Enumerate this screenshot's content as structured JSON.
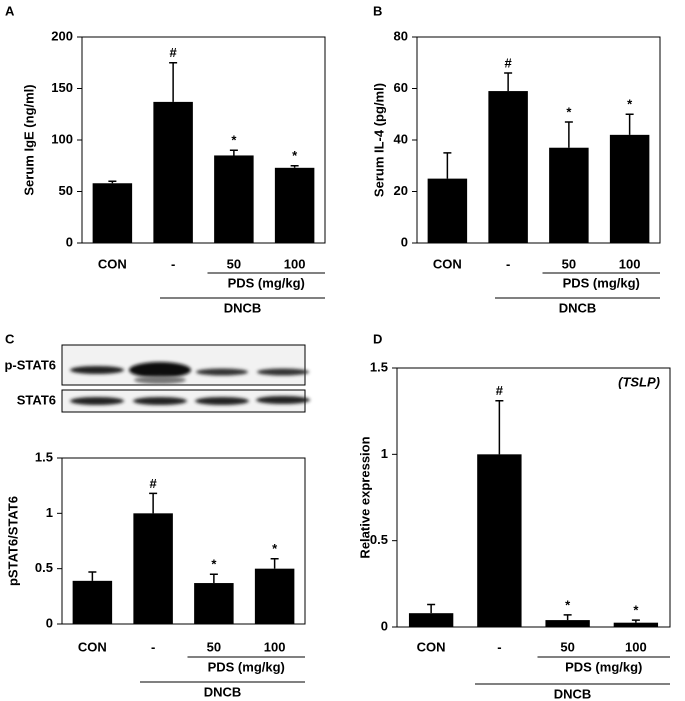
{
  "chart_data": [
    {
      "type": "bar",
      "panel": "A",
      "ylabel": "Serum IgE (ng/ml)",
      "categories": [
        "CON",
        "-",
        "50",
        "100"
      ],
      "values": [
        58,
        137,
        85,
        73
      ],
      "errors": [
        2,
        38,
        5,
        2
      ],
      "markers": [
        null,
        "#",
        "*",
        "*"
      ],
      "color": "#000000",
      "ylim": [
        0,
        200
      ],
      "yticks": [
        0,
        50,
        100,
        150,
        200
      ],
      "subgroup_label": "PDS (mg/kg)",
      "group_label": "DNCB"
    },
    {
      "type": "bar",
      "panel": "B",
      "ylabel": "Serum IL-4 (pg/ml)",
      "categories": [
        "CON",
        "-",
        "50",
        "100"
      ],
      "values": [
        25,
        59,
        37,
        42
      ],
      "errors": [
        10,
        7,
        10,
        8
      ],
      "markers": [
        null,
        "#",
        "*",
        "*"
      ],
      "color": "#000000",
      "ylim": [
        0,
        80
      ],
      "yticks": [
        0,
        20,
        40,
        60,
        80
      ],
      "subgroup_label": "PDS (mg/kg)",
      "group_label": "DNCB"
    },
    {
      "type": "bar",
      "panel": "C",
      "ylabel": "pSTAT6/STAT6",
      "blot_labels": [
        "p-STAT6",
        "STAT6"
      ],
      "categories": [
        "CON",
        "-",
        "50",
        "100"
      ],
      "values": [
        0.39,
        1.0,
        0.37,
        0.5
      ],
      "errors": [
        0.08,
        0.18,
        0.08,
        0.09
      ],
      "markers": [
        null,
        "#",
        "*",
        "*"
      ],
      "color": "#000000",
      "ylim": [
        0,
        1.5
      ],
      "yticks": [
        0,
        0.5,
        1,
        1.5
      ],
      "subgroup_label": "PDS (mg/kg)",
      "group_label": "DNCB"
    },
    {
      "type": "bar",
      "panel": "D",
      "ylabel": "Relative expression",
      "annotation": "(TSLP)",
      "categories": [
        "CON",
        "-",
        "50",
        "100"
      ],
      "values": [
        0.08,
        1.0,
        0.04,
        0.025
      ],
      "errors": [
        0.05,
        0.31,
        0.03,
        0.015
      ],
      "markers": [
        null,
        "#",
        "*",
        "*"
      ],
      "color": "#000000",
      "ylim": [
        0,
        1.5
      ],
      "yticks": [
        0,
        0.5,
        1,
        1.5
      ],
      "subgroup_label": "PDS (mg/kg)",
      "group_label": "DNCB"
    }
  ]
}
